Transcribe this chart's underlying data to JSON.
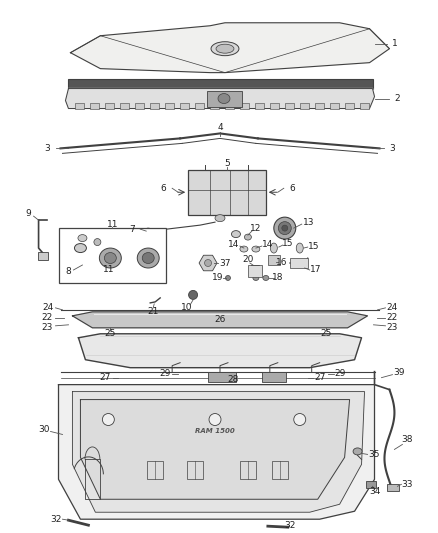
{
  "bg_color": "#ffffff",
  "line_color": "#404040",
  "label_color": "#222222",
  "label_fontsize": 6.5,
  "fig_width": 4.38,
  "fig_height": 5.33,
  "dpi": 100
}
